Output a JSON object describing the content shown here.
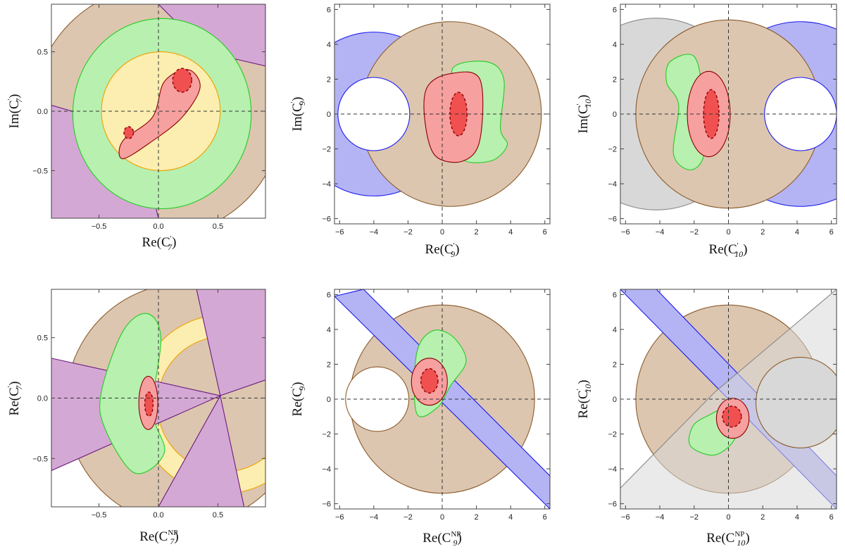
{
  "colors": {
    "tan": "#dcc6b0",
    "tan_edge": "#8b5a2b",
    "purple": "#d4a8d4",
    "purple_edge": "#6a1b7a",
    "green": "#b8f0b0",
    "green_edge": "#22cc22",
    "yellow": "#fbeeb0",
    "yellow_edge": "#f0a000",
    "blue": "#b4b4f4",
    "blue_edge": "#1a1aee",
    "gray": "#d8d8d8",
    "gray_edge": "#888888",
    "red_light": "#f7a0a0",
    "red_dark": "#f05050",
    "red_edge": "#8b0000"
  },
  "chart_data": [
    {
      "type": "contour",
      "panel": "top-left",
      "xlabel": {
        "base": "Re(C",
        "sub": "7",
        "sup": "'"
      },
      "ylabel": {
        "base": "Im(C",
        "sub": "7",
        "sup": "'"
      },
      "xlim": [
        -0.9,
        0.9
      ],
      "ylim": [
        -0.9,
        0.9
      ],
      "xticks": [
        -0.5,
        0.0,
        0.5
      ],
      "yticks": [
        -0.5,
        0.0,
        0.5
      ],
      "xtick_labels": [
        "−0.5",
        "0.0",
        "0.5"
      ],
      "ytick_labels": [
        "−0.5",
        "0.0",
        "0.5"
      ]
    },
    {
      "type": "contour",
      "panel": "top-center",
      "xlabel": {
        "base": "Re(C",
        "sub": "9",
        "sup": "'"
      },
      "ylabel": {
        "base": "Im(C",
        "sub": "9",
        "sup": "'"
      },
      "xlim": [
        -6.3,
        6.3
      ],
      "ylim": [
        -6.3,
        6.3
      ],
      "xticks": [
        -6,
        -4,
        -2,
        0,
        2,
        4,
        6
      ],
      "yticks": [
        -6,
        -4,
        -2,
        0,
        2,
        4,
        6
      ],
      "xtick_labels": [
        "−6",
        "−4",
        "−2",
        "0",
        "2",
        "4",
        "6"
      ],
      "ytick_labels": [
        "−6",
        "−4",
        "−2",
        "0",
        "2",
        "4",
        "6"
      ]
    },
    {
      "type": "contour",
      "panel": "top-right",
      "xlabel": {
        "base": "Re(C",
        "sub": "10",
        "sup": "'"
      },
      "ylabel": {
        "base": "Im(C",
        "sub": "10",
        "sup": "'"
      },
      "xlim": [
        -6.3,
        6.3
      ],
      "ylim": [
        -6.3,
        6.3
      ],
      "xticks": [
        -6,
        -4,
        -2,
        0,
        2,
        4,
        6
      ],
      "yticks": [
        -6,
        -4,
        -2,
        0,
        2,
        4,
        6
      ],
      "xtick_labels": [
        "−6",
        "−4",
        "−2",
        "0",
        "2",
        "4",
        "6"
      ],
      "ytick_labels": [
        "−6",
        "−4",
        "−2",
        "0",
        "2",
        "4",
        "6"
      ]
    },
    {
      "type": "contour",
      "panel": "bottom-left",
      "xlabel": {
        "base": "Re(C",
        "sub": "7",
        "sup": "NP"
      },
      "ylabel": {
        "base": "Re(C",
        "sub": "7",
        "sup": "'"
      },
      "xlim": [
        -0.9,
        0.9
      ],
      "ylim": [
        -0.9,
        0.9
      ],
      "xticks": [
        -0.5,
        0.0,
        0.5
      ],
      "yticks": [
        -0.5,
        0.0,
        0.5
      ],
      "xtick_labels": [
        "−0.5",
        "0.0",
        "0.5"
      ],
      "ytick_labels": [
        "−0.5",
        "0.0",
        "0.5"
      ]
    },
    {
      "type": "contour",
      "panel": "bottom-center",
      "xlabel": {
        "base": "Re(C",
        "sub": "9",
        "sup": "NP"
      },
      "ylabel": {
        "base": "Re(C",
        "sub": "9",
        "sup": "'"
      },
      "xlim": [
        -6.3,
        6.3
      ],
      "ylim": [
        -6.3,
        6.3
      ],
      "xticks": [
        -6,
        -4,
        -2,
        0,
        2,
        4,
        6
      ],
      "yticks": [
        -6,
        -4,
        -2,
        0,
        2,
        4,
        6
      ],
      "xtick_labels": [
        "−6",
        "−4",
        "−2",
        "0",
        "2",
        "4",
        "6"
      ],
      "ytick_labels": [
        "−6",
        "−4",
        "−2",
        "0",
        "2",
        "4",
        "6"
      ]
    },
    {
      "type": "contour",
      "panel": "bottom-right",
      "xlabel": {
        "base": "Re(C",
        "sub": "10",
        "sup": "NP"
      },
      "ylabel": {
        "base": "Re(C",
        "sub": "10",
        "sup": "'"
      },
      "xlim": [
        -6.3,
        6.3
      ],
      "ylim": [
        -6.3,
        6.3
      ],
      "xticks": [
        -6,
        -4,
        -2,
        0,
        2,
        4,
        6
      ],
      "yticks": [
        -6,
        -4,
        -2,
        0,
        2,
        4,
        6
      ],
      "xtick_labels": [
        "−6",
        "−4",
        "−2",
        "0",
        "2",
        "4",
        "6"
      ],
      "ytick_labels": [
        "−6",
        "−4",
        "−2",
        "0",
        "2",
        "4",
        "6"
      ]
    }
  ]
}
